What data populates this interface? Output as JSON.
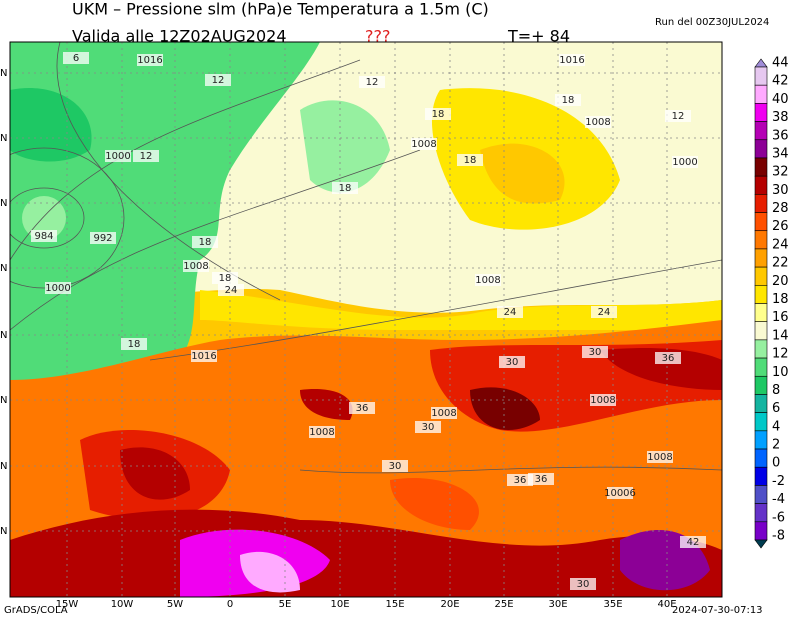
{
  "header": {
    "title": "UKM – Pressione slm (hPa)e Temperatura a 1.5m (C)",
    "run": "Run del 00Z30JUL2024",
    "valid": "Valida alle 12Z02AUG2024",
    "flag": "???",
    "step": "T=+ 84"
  },
  "map": {
    "lon_labels": [
      "15W",
      "10W",
      "5W",
      "0",
      "5E",
      "10E",
      "15E",
      "20E",
      "25E",
      "30E",
      "35E",
      "40E"
    ],
    "lat_labels": [
      "N",
      "N",
      "N",
      "N",
      "N",
      "N",
      "N",
      "N"
    ],
    "contour_labels": [
      "1016",
      "6",
      "12",
      "12",
      "1000",
      "12",
      "984",
      "992",
      "1000",
      "18",
      "18",
      "1008",
      "18",
      "24",
      "1016",
      "18",
      "1008",
      "18",
      "1016",
      "12",
      "1008",
      "18",
      "1000",
      "18",
      "1008",
      "24",
      "24",
      "30",
      "30",
      "36",
      "1008",
      "36",
      "30",
      "1008",
      "1008",
      "30",
      "36",
      "42",
      "1008",
      "10006",
      "36",
      "30"
    ]
  },
  "colorbar": {
    "levels": [
      44,
      42,
      40,
      38,
      36,
      34,
      32,
      30,
      28,
      26,
      24,
      22,
      20,
      18,
      16,
      14,
      12,
      10,
      8,
      6,
      4,
      2,
      0,
      -2,
      -4,
      -6,
      -8
    ],
    "colors": [
      "#a08cd8",
      "#e6c8f0",
      "#ffaaff",
      "#f000f0",
      "#b400b4",
      "#8c0096",
      "#780000",
      "#b40000",
      "#e61e00",
      "#ff5000",
      "#ff7800",
      "#ffa000",
      "#ffc800",
      "#ffe600",
      "#ffff8c",
      "#fafad2",
      "#96f0a0",
      "#50dc78",
      "#1ec864",
      "#14b4a0",
      "#00c8c8",
      "#00a0ff",
      "#0064ff",
      "#0000e6",
      "#5050c8",
      "#6432c8",
      "#7800c8",
      "#003c50"
    ]
  },
  "footer": {
    "left": "GrADS/COLA",
    "right": "2024-07-30-07:13"
  }
}
